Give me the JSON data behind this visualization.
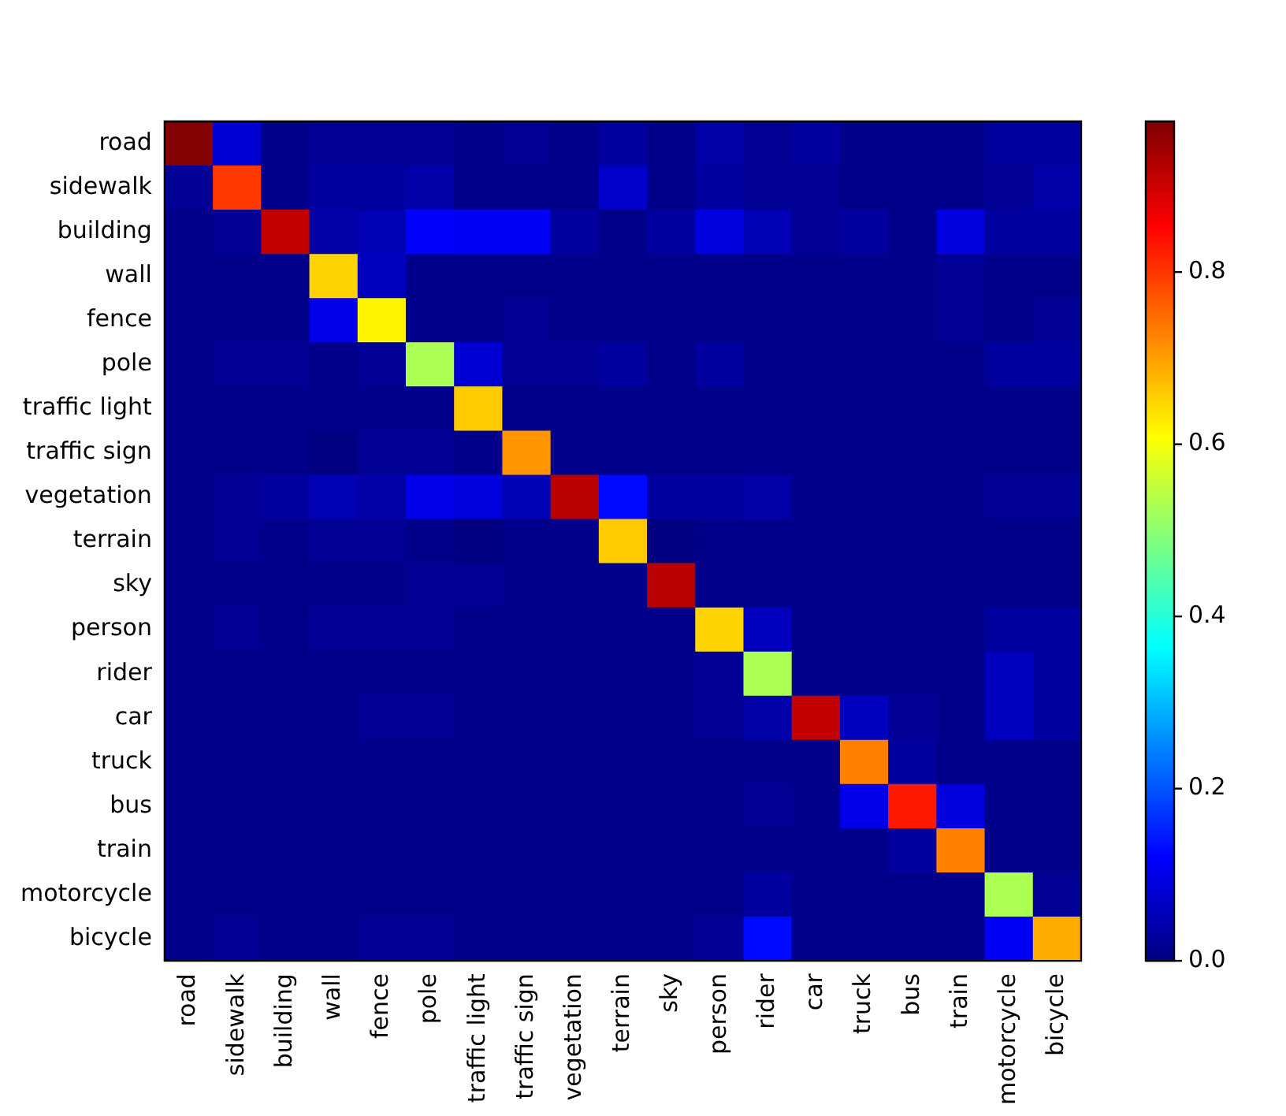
{
  "chart_data": {
    "type": "heatmap",
    "categories": [
      "road",
      "sidewalk",
      "building",
      "wall",
      "fence",
      "pole",
      "traffic light",
      "traffic sign",
      "vegetation",
      "terrain",
      "sky",
      "person",
      "rider",
      "car",
      "truck",
      "bus",
      "train",
      "motorcycle",
      "bicycle"
    ],
    "y_categories": [
      "road",
      "sidewalk",
      "building",
      "wall",
      "fence",
      "pole",
      "traffic light",
      "traffic sign",
      "vegetation",
      "terrain",
      "sky",
      "person",
      "rider",
      "car",
      "truck",
      "bus",
      "train",
      "motorcycle",
      "bicycle"
    ],
    "cells": [
      [
        0.97,
        0.08,
        0.01,
        0.02,
        0.02,
        0.02,
        0.01,
        0.02,
        0.01,
        0.03,
        0.01,
        0.04,
        0.02,
        0.03,
        0.01,
        0.01,
        0.01,
        0.03,
        0.03
      ],
      [
        0.02,
        0.8,
        0.01,
        0.03,
        0.03,
        0.04,
        0.01,
        0.01,
        0.01,
        0.07,
        0.01,
        0.03,
        0.02,
        0.02,
        0.01,
        0.01,
        0.01,
        0.02,
        0.04
      ],
      [
        0.01,
        0.02,
        0.91,
        0.04,
        0.05,
        0.12,
        0.11,
        0.11,
        0.03,
        0.01,
        0.03,
        0.09,
        0.05,
        0.02,
        0.03,
        0.01,
        0.09,
        0.03,
        0.03
      ],
      [
        0.01,
        0.01,
        0.01,
        0.65,
        0.06,
        0.01,
        0.01,
        0.01,
        0.01,
        0.01,
        0.01,
        0.01,
        0.01,
        0.01,
        0.01,
        0.01,
        0.02,
        0.01,
        0.01
      ],
      [
        0.01,
        0.01,
        0.01,
        0.1,
        0.62,
        0.01,
        0.01,
        0.02,
        0.01,
        0.01,
        0.01,
        0.01,
        0.01,
        0.01,
        0.01,
        0.01,
        0.02,
        0.01,
        0.02
      ],
      [
        0.01,
        0.02,
        0.02,
        0.01,
        0.02,
        0.53,
        0.08,
        0.02,
        0.02,
        0.03,
        0.01,
        0.03,
        0.01,
        0.01,
        0.01,
        0.01,
        0.01,
        0.03,
        0.03
      ],
      [
        0.01,
        0.01,
        0.01,
        0.01,
        0.01,
        0.01,
        0.66,
        0.01,
        0.01,
        0.01,
        0.01,
        0.01,
        0.01,
        0.01,
        0.01,
        0.01,
        0.01,
        0.01,
        0.01
      ],
      [
        0.01,
        0.01,
        0.01,
        0.0,
        0.02,
        0.02,
        0.01,
        0.71,
        0.01,
        0.01,
        0.01,
        0.01,
        0.01,
        0.01,
        0.01,
        0.01,
        0.01,
        0.01,
        0.01
      ],
      [
        0.01,
        0.02,
        0.03,
        0.05,
        0.04,
        0.1,
        0.09,
        0.05,
        0.92,
        0.13,
        0.03,
        0.03,
        0.04,
        0.01,
        0.01,
        0.01,
        0.01,
        0.02,
        0.02
      ],
      [
        0.01,
        0.02,
        0.01,
        0.02,
        0.02,
        0.01,
        0.0,
        0.01,
        0.01,
        0.66,
        0.0,
        0.01,
        0.01,
        0.01,
        0.01,
        0.01,
        0.01,
        0.01,
        0.01
      ],
      [
        0.01,
        0.01,
        0.01,
        0.01,
        0.01,
        0.02,
        0.02,
        0.01,
        0.01,
        0.01,
        0.92,
        0.01,
        0.01,
        0.01,
        0.01,
        0.01,
        0.01,
        0.01,
        0.01
      ],
      [
        0.01,
        0.02,
        0.01,
        0.02,
        0.02,
        0.02,
        0.01,
        0.01,
        0.01,
        0.01,
        0.01,
        0.65,
        0.06,
        0.01,
        0.01,
        0.01,
        0.01,
        0.03,
        0.03
      ],
      [
        0.01,
        0.01,
        0.01,
        0.01,
        0.01,
        0.01,
        0.01,
        0.01,
        0.01,
        0.01,
        0.01,
        0.02,
        0.53,
        0.01,
        0.01,
        0.01,
        0.01,
        0.06,
        0.03
      ],
      [
        0.01,
        0.01,
        0.01,
        0.01,
        0.02,
        0.02,
        0.01,
        0.01,
        0.01,
        0.01,
        0.01,
        0.02,
        0.04,
        0.91,
        0.06,
        0.02,
        0.01,
        0.06,
        0.03
      ],
      [
        0.01,
        0.01,
        0.01,
        0.01,
        0.01,
        0.01,
        0.01,
        0.01,
        0.01,
        0.01,
        0.01,
        0.01,
        0.01,
        0.01,
        0.73,
        0.03,
        0.01,
        0.01,
        0.01
      ],
      [
        0.01,
        0.01,
        0.01,
        0.01,
        0.01,
        0.01,
        0.01,
        0.01,
        0.01,
        0.01,
        0.01,
        0.01,
        0.02,
        0.01,
        0.1,
        0.83,
        0.09,
        0.01,
        0.01
      ],
      [
        0.01,
        0.01,
        0.01,
        0.01,
        0.01,
        0.01,
        0.01,
        0.01,
        0.01,
        0.01,
        0.01,
        0.01,
        0.01,
        0.01,
        0.01,
        0.03,
        0.73,
        0.01,
        0.01
      ],
      [
        0.01,
        0.01,
        0.01,
        0.01,
        0.01,
        0.01,
        0.01,
        0.01,
        0.01,
        0.01,
        0.01,
        0.01,
        0.03,
        0.01,
        0.01,
        0.01,
        0.01,
        0.53,
        0.02
      ],
      [
        0.01,
        0.02,
        0.01,
        0.01,
        0.02,
        0.02,
        0.01,
        0.01,
        0.01,
        0.01,
        0.01,
        0.02,
        0.13,
        0.01,
        0.01,
        0.01,
        0.01,
        0.11,
        0.69
      ]
    ],
    "clim": [
      0,
      0.975
    ],
    "cticks": [
      {
        "value": 0,
        "label": "0.0"
      },
      0.2,
      0.4,
      0.6,
      0.8
    ]
  }
}
